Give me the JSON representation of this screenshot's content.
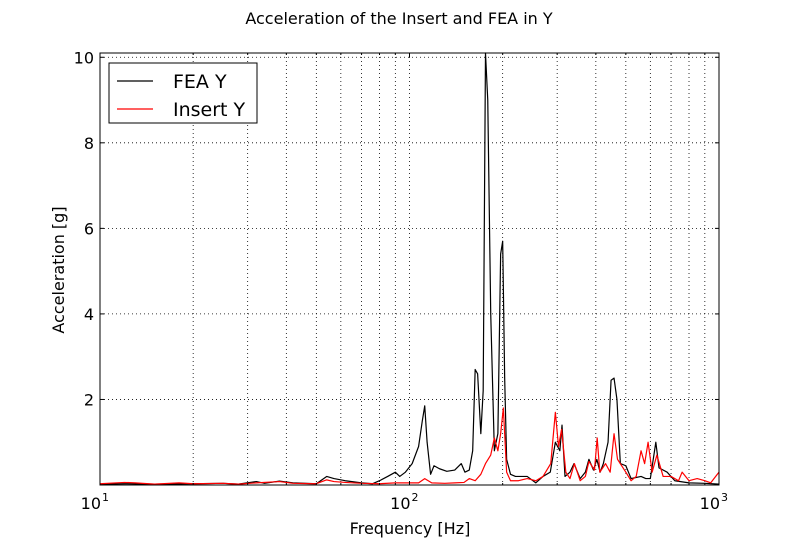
{
  "chart_data": {
    "type": "line",
    "title": "Acceleration of the Insert and FEA in Y",
    "xlabel": "Frequency [Hz]",
    "ylabel": "Acceleration [g]",
    "xscale": "log",
    "xlim": [
      10,
      1000
    ],
    "ylim": [
      0,
      10.1
    ],
    "xticks": [
      {
        "value": 10,
        "base": "10",
        "exp": "1"
      },
      {
        "value": 100,
        "base": "10",
        "exp": "2"
      },
      {
        "value": 1000,
        "base": "10",
        "exp": "3"
      }
    ],
    "yticks": [
      {
        "value": 2,
        "label": "2"
      },
      {
        "value": 4,
        "label": "4"
      },
      {
        "value": 6,
        "label": "6"
      },
      {
        "value": 8,
        "label": "8"
      },
      {
        "value": 10,
        "label": "10"
      }
    ],
    "grid": true,
    "legend_position": "top-left",
    "series": [
      {
        "name": "FEA Y",
        "color": "#000000",
        "points": [
          [
            10,
            0.02
          ],
          [
            12,
            0.03
          ],
          [
            15,
            0.02
          ],
          [
            20,
            0.03
          ],
          [
            25,
            0.04
          ],
          [
            28,
            0.02
          ],
          [
            32,
            0.08
          ],
          [
            34,
            0.04
          ],
          [
            38,
            0.09
          ],
          [
            42,
            0.05
          ],
          [
            50,
            0.03
          ],
          [
            54,
            0.2
          ],
          [
            57,
            0.15
          ],
          [
            62,
            0.1
          ],
          [
            70,
            0.05
          ],
          [
            76,
            0.03
          ],
          [
            80,
            0.1
          ],
          [
            85,
            0.2
          ],
          [
            90,
            0.3
          ],
          [
            93,
            0.2
          ],
          [
            97,
            0.3
          ],
          [
            102,
            0.5
          ],
          [
            107,
            0.9
          ],
          [
            110,
            1.5
          ],
          [
            112,
            1.85
          ],
          [
            114,
            1.0
          ],
          [
            117,
            0.25
          ],
          [
            120,
            0.45
          ],
          [
            125,
            0.38
          ],
          [
            132,
            0.32
          ],
          [
            140,
            0.35
          ],
          [
            147,
            0.5
          ],
          [
            151,
            0.3
          ],
          [
            156,
            0.35
          ],
          [
            160,
            0.8
          ],
          [
            163,
            2.7
          ],
          [
            166,
            2.6
          ],
          [
            170,
            1.2
          ],
          [
            173,
            2.2
          ],
          [
            176,
            10.1
          ],
          [
            179,
            9.0
          ],
          [
            183,
            4.0
          ],
          [
            188,
            0.8
          ],
          [
            193,
            1.2
          ],
          [
            197,
            5.4
          ],
          [
            200,
            5.7
          ],
          [
            203,
            2.5
          ],
          [
            206,
            0.6
          ],
          [
            212,
            0.25
          ],
          [
            220,
            0.2
          ],
          [
            240,
            0.2
          ],
          [
            256,
            0.05
          ],
          [
            270,
            0.2
          ],
          [
            285,
            0.3
          ],
          [
            296,
            1.0
          ],
          [
            306,
            0.8
          ],
          [
            311,
            1.4
          ],
          [
            318,
            0.2
          ],
          [
            330,
            0.3
          ],
          [
            340,
            0.5
          ],
          [
            356,
            0.15
          ],
          [
            370,
            0.3
          ],
          [
            380,
            0.6
          ],
          [
            393,
            0.35
          ],
          [
            403,
            0.6
          ],
          [
            413,
            0.3
          ],
          [
            423,
            0.5
          ],
          [
            438,
            1.0
          ],
          [
            448,
            2.45
          ],
          [
            458,
            2.5
          ],
          [
            468,
            2.0
          ],
          [
            480,
            0.5
          ],
          [
            500,
            0.45
          ],
          [
            520,
            0.15
          ],
          [
            560,
            0.2
          ],
          [
            580,
            0.15
          ],
          [
            600,
            0.15
          ],
          [
            625,
            1.0
          ],
          [
            640,
            0.4
          ],
          [
            680,
            0.3
          ],
          [
            720,
            0.1
          ],
          [
            800,
            0.05
          ],
          [
            900,
            0.04
          ],
          [
            1000,
            0.02
          ]
        ]
      },
      {
        "name": "Insert Y",
        "color": "#ff0000",
        "points": [
          [
            10,
            0.03
          ],
          [
            12,
            0.06
          ],
          [
            13,
            0.05
          ],
          [
            15,
            0.02
          ],
          [
            18,
            0.05
          ],
          [
            20,
            0.03
          ],
          [
            25,
            0.04
          ],
          [
            28,
            0.02
          ],
          [
            32,
            0.05
          ],
          [
            38,
            0.08
          ],
          [
            42,
            0.04
          ],
          [
            50,
            0.03
          ],
          [
            54,
            0.12
          ],
          [
            57,
            0.08
          ],
          [
            62,
            0.06
          ],
          [
            70,
            0.04
          ],
          [
            80,
            0.03
          ],
          [
            90,
            0.05
          ],
          [
            100,
            0.05
          ],
          [
            107,
            0.05
          ],
          [
            112,
            0.15
          ],
          [
            118,
            0.05
          ],
          [
            130,
            0.04
          ],
          [
            140,
            0.05
          ],
          [
            150,
            0.06
          ],
          [
            156,
            0.15
          ],
          [
            163,
            0.1
          ],
          [
            170,
            0.25
          ],
          [
            176,
            0.5
          ],
          [
            183,
            0.7
          ],
          [
            188,
            1.1
          ],
          [
            193,
            0.8
          ],
          [
            197,
            1.2
          ],
          [
            201,
            1.8
          ],
          [
            206,
            0.3
          ],
          [
            212,
            0.1
          ],
          [
            225,
            0.1
          ],
          [
            240,
            0.15
          ],
          [
            256,
            0.1
          ],
          [
            270,
            0.2
          ],
          [
            286,
            0.5
          ],
          [
            296,
            1.7
          ],
          [
            303,
            0.9
          ],
          [
            310,
            1.3
          ],
          [
            320,
            0.3
          ],
          [
            330,
            0.15
          ],
          [
            341,
            0.5
          ],
          [
            356,
            0.1
          ],
          [
            370,
            0.2
          ],
          [
            380,
            0.55
          ],
          [
            396,
            0.35
          ],
          [
            404,
            1.1
          ],
          [
            412,
            0.3
          ],
          [
            430,
            0.5
          ],
          [
            445,
            0.3
          ],
          [
            458,
            1.2
          ],
          [
            470,
            0.6
          ],
          [
            500,
            0.3
          ],
          [
            520,
            0.1
          ],
          [
            540,
            0.2
          ],
          [
            560,
            0.8
          ],
          [
            575,
            0.5
          ],
          [
            590,
            1.0
          ],
          [
            608,
            0.3
          ],
          [
            630,
            0.7
          ],
          [
            660,
            0.2
          ],
          [
            700,
            0.2
          ],
          [
            740,
            0.1
          ],
          [
            760,
            0.3
          ],
          [
            800,
            0.1
          ],
          [
            850,
            0.15
          ],
          [
            900,
            0.1
          ],
          [
            940,
            0.05
          ],
          [
            975,
            0.2
          ],
          [
            1000,
            0.3
          ]
        ]
      }
    ]
  }
}
